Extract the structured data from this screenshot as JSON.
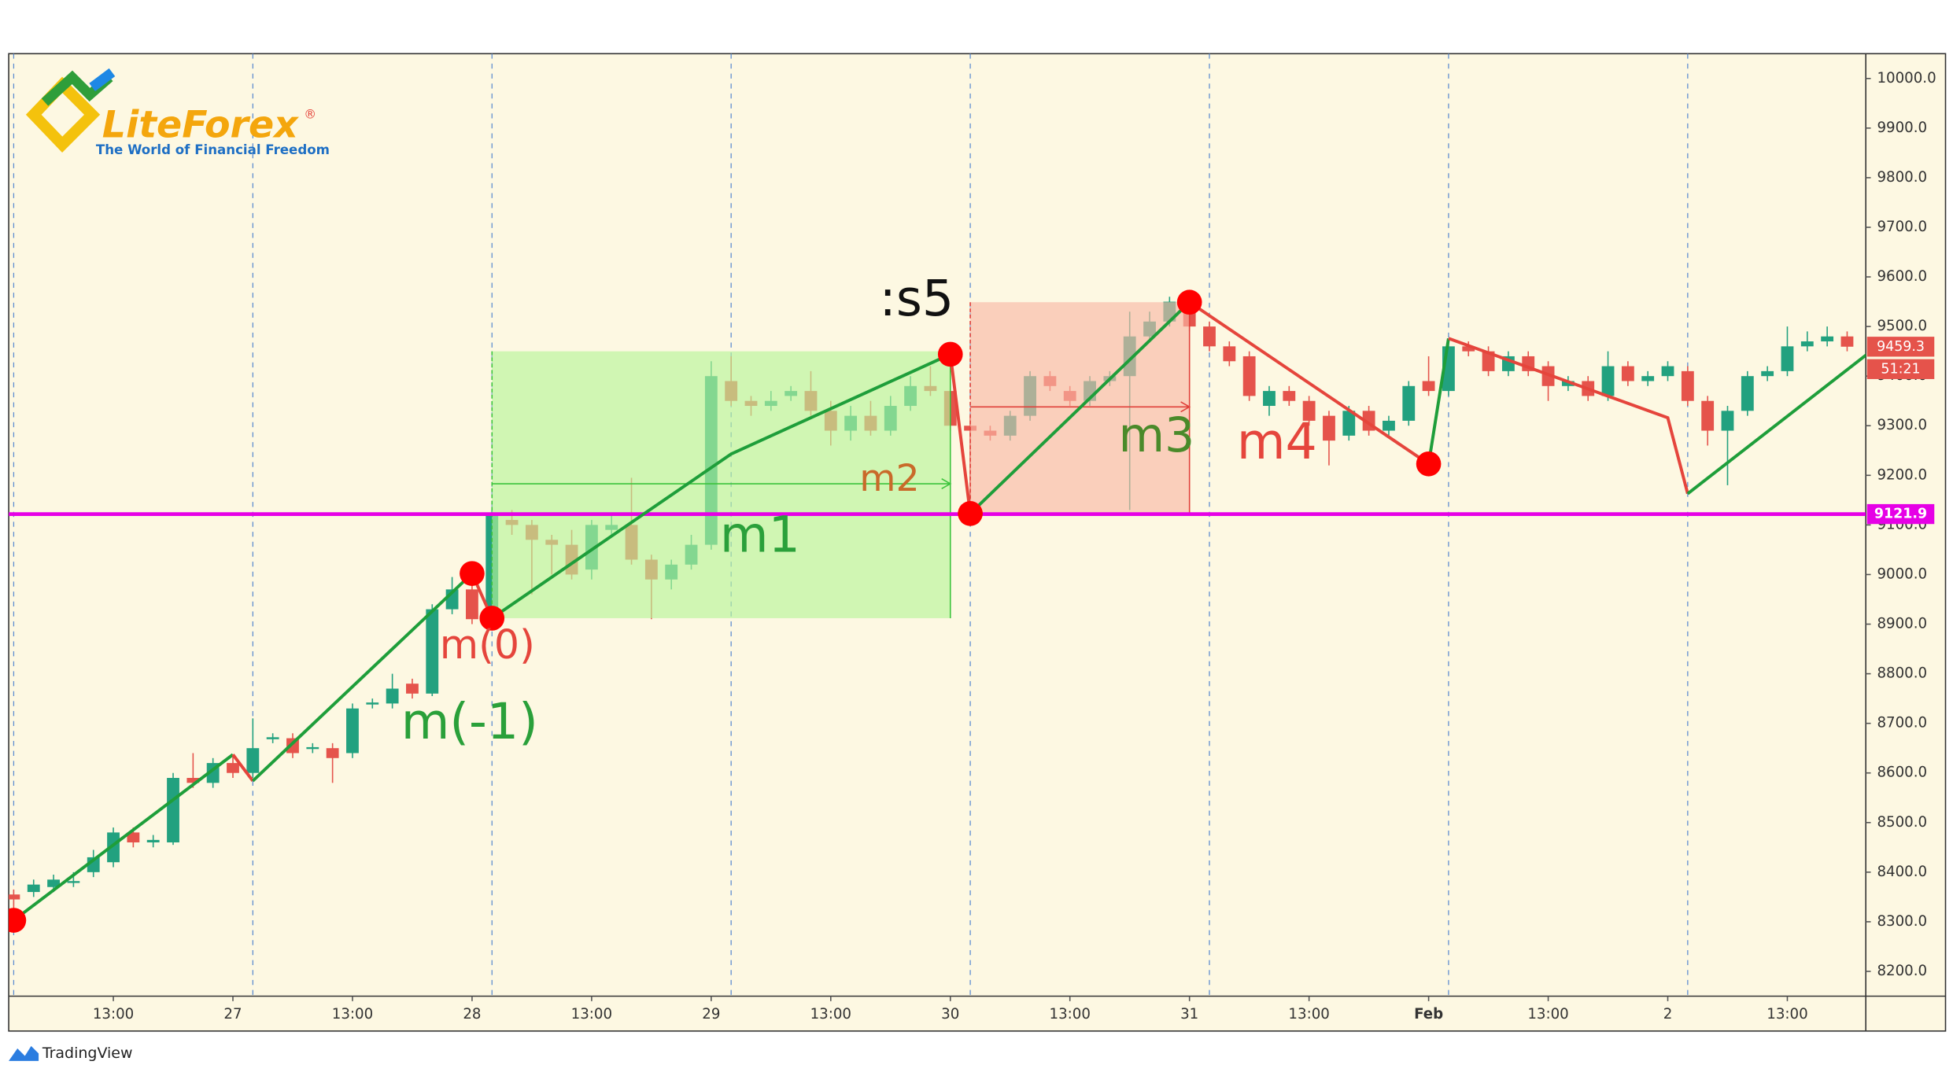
{
  "chart_data": {
    "type": "candlestick",
    "categories": [
      null,
      null,
      null,
      null,
      null,
      "13:00",
      null,
      null,
      null,
      null,
      null,
      "27",
      null,
      null,
      null,
      null,
      null,
      "13:00",
      null,
      null,
      null,
      null,
      null,
      "28",
      null,
      null,
      null,
      null,
      null,
      "13:00",
      null,
      null,
      null,
      null,
      null,
      "29",
      null,
      null,
      null,
      null,
      null,
      "13:00",
      null,
      null,
      null,
      null,
      null,
      "30",
      null,
      null,
      null,
      null,
      null,
      "13:00",
      null,
      null,
      null,
      null,
      null,
      "31",
      null,
      null,
      null,
      null,
      null,
      "13:00",
      null,
      null,
      null,
      null,
      null,
      "Feb",
      null,
      null,
      null,
      null,
      null,
      "13:00",
      null,
      null,
      null,
      null,
      null,
      "2",
      null,
      null,
      null,
      null,
      null,
      "13:00",
      null,
      null,
      null
    ],
    "open": [
      8355,
      8360,
      8370,
      8380,
      8400,
      8420,
      8480,
      8460,
      8460,
      8590,
      8580,
      8620,
      8600,
      8668,
      8670,
      8650,
      8650,
      8640,
      8738,
      8740,
      8780,
      8760,
      8930,
      8970,
      8910,
      9110,
      9100,
      9070,
      9060,
      9010,
      9090,
      9100,
      9030,
      8990,
      9020,
      9060,
      9390,
      9350,
      9340,
      9360,
      9370,
      9330,
      9290,
      9320,
      9290,
      9340,
      9380,
      9370,
      9300,
      9290,
      9280,
      9320,
      9400,
      9370,
      9350,
      9390,
      9400,
      9480,
      9510,
      9530,
      9500,
      9460,
      9440,
      9340,
      9370,
      9350,
      9320,
      9280,
      9330,
      9290,
      9310,
      9390,
      9370,
      9460,
      9450,
      9410,
      9440,
      9420,
      9380,
      9390,
      9360,
      9420,
      9390,
      9400,
      9410,
      9350,
      9290,
      9330,
      9400,
      9410,
      9460,
      9470,
      9480
    ],
    "high": [
      8365,
      8385,
      8395,
      8400,
      8445,
      8490,
      8490,
      8475,
      8600,
      8640,
      8630,
      8635,
      8710,
      8680,
      8680,
      8660,
      8660,
      8740,
      8750,
      8800,
      8790,
      8940,
      8995,
      8980,
      9130,
      9130,
      9110,
      9080,
      9090,
      9110,
      9120,
      9195,
      9040,
      9030,
      9080,
      9430,
      9440,
      9360,
      9370,
      9380,
      9410,
      9350,
      9340,
      9350,
      9360,
      9400,
      9420,
      9440,
      9320,
      9300,
      9330,
      9410,
      9410,
      9380,
      9400,
      9410,
      9530,
      9530,
      9560,
      9545,
      9510,
      9470,
      9450,
      9380,
      9380,
      9360,
      9330,
      9340,
      9340,
      9320,
      9390,
      9440,
      9470,
      9470,
      9460,
      9450,
      9450,
      9430,
      9400,
      9400,
      9450,
      9430,
      9410,
      9430,
      9420,
      9360,
      9340,
      9410,
      9420,
      9500,
      9490,
      9500,
      9490
    ],
    "low": [
      8300,
      8350,
      8360,
      8370,
      8390,
      8410,
      8450,
      8450,
      8455,
      8570,
      8570,
      8590,
      8590,
      8660,
      8630,
      8640,
      8580,
      8630,
      8730,
      8730,
      8750,
      8755,
      8920,
      8900,
      8905,
      9080,
      8960,
      9000,
      8990,
      8990,
      9080,
      9020,
      8910,
      8970,
      9010,
      9050,
      9340,
      9320,
      9330,
      9350,
      9320,
      9260,
      9270,
      9280,
      9280,
      9330,
      9360,
      9290,
      9120,
      9270,
      9270,
      9310,
      9370,
      9340,
      9340,
      9380,
      9130,
      9470,
      9500,
      9490,
      9450,
      9420,
      9350,
      9320,
      9340,
      9300,
      9220,
      9270,
      9280,
      9280,
      9300,
      9360,
      9360,
      9440,
      9400,
      9400,
      9400,
      9350,
      9370,
      9350,
      9350,
      9380,
      9380,
      9390,
      9340,
      9260,
      9180,
      9320,
      9390,
      9400,
      9450,
      9460,
      9450
    ],
    "close": [
      8345,
      8375,
      8385,
      8382,
      8430,
      8480,
      8460,
      8465,
      8590,
      8580,
      8620,
      8600,
      8650,
      8672,
      8640,
      8652,
      8630,
      8730,
      8742,
      8770,
      8760,
      8930,
      8970,
      8910,
      9120,
      9100,
      9070,
      9060,
      9000,
      9100,
      9100,
      9030,
      8990,
      9020,
      9060,
      9400,
      9350,
      9340,
      9350,
      9370,
      9330,
      9290,
      9320,
      9290,
      9340,
      9380,
      9370,
      9300,
      9290,
      9280,
      9320,
      9400,
      9380,
      9350,
      9390,
      9400,
      9480,
      9510,
      9550,
      9500,
      9460,
      9430,
      9360,
      9370,
      9350,
      9310,
      9270,
      9330,
      9290,
      9310,
      9380,
      9370,
      9460,
      9450,
      9410,
      9440,
      9410,
      9380,
      9390,
      9360,
      9420,
      9390,
      9400,
      9420,
      9350,
      9290,
      9330,
      9400,
      9410,
      9460,
      9470,
      9480,
      9459.3
    ],
    "up_color": "#22a17f",
    "down_color": "#e5534b",
    "ylim": [
      8150,
      10050
    ],
    "yticks": [
      {
        "value": 8200,
        "label": "8200.0"
      },
      {
        "value": 8300,
        "label": "8300.0"
      },
      {
        "value": 8400,
        "label": "8400.0"
      },
      {
        "value": 8500,
        "label": "8500.0"
      },
      {
        "value": 8600,
        "label": "8600.0"
      },
      {
        "value": 8700,
        "label": "8700.0"
      },
      {
        "value": 8800,
        "label": "8800.0"
      },
      {
        "value": 8900,
        "label": "8900.0"
      },
      {
        "value": 9000,
        "label": "9000.0"
      },
      {
        "value": 9100,
        "label": "9100.0"
      },
      {
        "value": 9200,
        "label": "9200.0"
      },
      {
        "value": 9300,
        "label": "9300.0"
      },
      {
        "value": 9400,
        "label": "9400.0"
      },
      {
        "value": 9500,
        "label": "9500.0"
      },
      {
        "value": 9600,
        "label": "9600.0"
      },
      {
        "value": 9700,
        "label": "9700.0"
      },
      {
        "value": 9800,
        "label": "9800.0"
      },
      {
        "value": 9900,
        "label": "9900.0"
      },
      {
        "value": 10000,
        "label": "10000.0"
      }
    ],
    "hline": {
      "value": 9121.9,
      "color": "#e600e6"
    },
    "countdown": "51:21",
    "zones": [
      {
        "x": [
          24,
          47
        ],
        "y": [
          8912,
          9450
        ],
        "arrow": 9183,
        "fill": "#b8f59a",
        "stroke": "#3cc43c"
      },
      {
        "x": [
          48,
          59
        ],
        "y": [
          9123,
          9549
        ],
        "arrow": 9338,
        "fill": "#f9b8a6",
        "stroke": "#e0403a"
      }
    ],
    "lines": [
      {
        "color": "#1e9e3a",
        "x": [
          0,
          11
        ],
        "y": [
          8303,
          8637
        ]
      },
      {
        "color": "#e5453c",
        "x": [
          11,
          12
        ],
        "y": [
          8637,
          8584
        ]
      },
      {
        "color": "#1e9e3a",
        "x": [
          12,
          23
        ],
        "y": [
          8584,
          9002
        ]
      },
      {
        "color": "#e5453c",
        "x": [
          23,
          24
        ],
        "y": [
          9002,
          8912
        ]
      },
      {
        "color": "#1e9e3a",
        "x": [
          24,
          36,
          47
        ],
        "y": [
          8912,
          9243,
          9444
        ]
      },
      {
        "color": "#e5453c",
        "x": [
          47,
          48
        ],
        "y": [
          9444,
          9123
        ]
      },
      {
        "color": "#1e9e3a",
        "x": [
          48,
          59
        ],
        "y": [
          9123,
          9549
        ]
      },
      {
        "color": "#e5453c",
        "x": [
          59,
          71
        ],
        "y": [
          9549,
          9223
        ]
      },
      {
        "color": "#1e9e3a",
        "x": [
          71,
          72
        ],
        "y": [
          9223,
          9476
        ]
      },
      {
        "color": "#e5453c",
        "x": [
          72,
          83,
          84
        ],
        "y": [
          9476,
          9316,
          9163
        ]
      },
      {
        "color": "#1e9e3a",
        "x": [
          84,
          93
        ],
        "y": [
          9163,
          9444
        ]
      }
    ],
    "points": {
      "color": "#ff0000",
      "x": [
        0,
        23,
        24,
        47,
        48,
        59,
        71
      ],
      "y": [
        8303,
        9002,
        8912,
        9444,
        9123,
        9549,
        9223
      ]
    },
    "annotations": [
      ":s5",
      "m(0)",
      "m(-1)",
      "m1",
      "m2",
      "m3",
      "m4"
    ]
  },
  "logo": {
    "name": "LiteForex",
    "mark": "®",
    "tagline": "The World of Financial Freedom"
  },
  "footer": "TradingView"
}
